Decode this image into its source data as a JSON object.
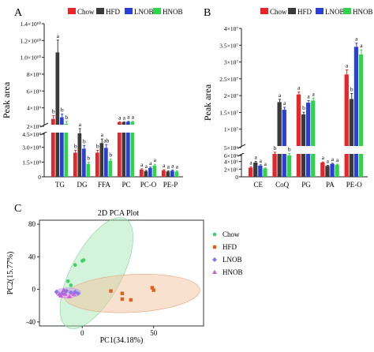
{
  "figure": {
    "palette": {
      "chow": "#e8252b",
      "hfd": "#3a3a3a",
      "lnob": "#2a3fd6",
      "hnob": "#2fd44a"
    },
    "series": [
      "Chow",
      "HFD",
      "LNOB",
      "HNOB"
    ]
  },
  "chart_data": [
    {
      "panel": "A",
      "type": "bar",
      "title": "",
      "ylabel": "Peak area",
      "categories": [
        "TG",
        "DG",
        "FFA",
        "PC",
        "PC-O",
        "PE-P"
      ],
      "axis_break": {
        "lower_ylim": [
          0,
          550000000
        ],
        "upper_ylim": [
          1700000000,
          14000000000
        ]
      },
      "lower_ticks": [
        "0",
        "1.5×10⁸",
        "3.0×10⁸",
        "4.5×10⁸"
      ],
      "upper_ticks": [
        "2×10⁹",
        "4×10⁹",
        "6×10⁹",
        "8×10⁹",
        "1.0×10¹⁰",
        "1.2×10¹⁰",
        "1.4×10¹⁰"
      ],
      "series": [
        {
          "name": "Chow",
          "values": [
            2400000000,
            300000000,
            300000000,
            2000000000,
            90000000,
            80000000
          ]
        },
        {
          "name": "HFD",
          "values": [
            10500000000,
            540000000,
            420000000,
            2000000000,
            70000000,
            65000000
          ]
        },
        {
          "name": "LNOB",
          "values": [
            2600000000,
            350000000,
            360000000,
            2050000000,
            110000000,
            75000000
          ]
        },
        {
          "name": "HNOB",
          "values": [
            1800000000,
            160000000,
            200000000,
            2050000000,
            140000000,
            65000000
          ]
        }
      ],
      "errors": [
        [
          400000000,
          30000000,
          30000000,
          60000000,
          10000000,
          8000000
        ],
        [
          1500000000,
          60000000,
          50000000,
          60000000,
          10000000,
          8000000
        ],
        [
          400000000,
          40000000,
          40000000,
          60000000,
          10000000,
          8000000
        ],
        [
          300000000,
          20000000,
          20000000,
          60000000,
          15000000,
          8000000
        ]
      ],
      "sig_labels": [
        [
          "b",
          "b",
          "b",
          "a",
          "a",
          "a"
        ],
        [
          "a",
          "a",
          "a",
          "a",
          "a",
          "a"
        ],
        [
          "b",
          "b",
          "ab",
          "a",
          "a",
          "a"
        ],
        [
          "b",
          "b",
          "b",
          "a",
          "a",
          "a"
        ]
      ]
    },
    {
      "panel": "B",
      "type": "bar",
      "title": "",
      "ylabel": "Peak area",
      "categories": [
        "CE",
        "CoQ",
        "PG",
        "PA",
        "PE-O"
      ],
      "axis_break": {
        "lower_ylim": [
          0,
          8000000
        ],
        "upper_ylim": [
          1700000,
          40000000
        ]
      },
      "lower_ticks": [
        "0",
        "2×10⁶",
        "4×10⁶",
        "6×10⁶"
      ],
      "upper_ticks": [
        "5×10⁶",
        "1×10⁷",
        "1.5×10⁷",
        "2×10⁷",
        "2.5×10⁷",
        "3×10⁷",
        "3.5×10⁷",
        "4×10⁷"
      ],
      "series": [
        {
          "name": "Chow",
          "values": [
            3200000,
            8000000,
            18500000,
            5000000,
            25000000
          ]
        },
        {
          "name": "HFD",
          "values": [
            5000000,
            16000000,
            12000000,
            3800000,
            17000000
          ]
        },
        {
          "name": "LNOB",
          "values": [
            3900000,
            13500000,
            15800000,
            4500000,
            34000000
          ]
        },
        {
          "name": "HNOB",
          "values": [
            2900000,
            7500000,
            16500000,
            4200000,
            31500000
          ]
        }
      ],
      "errors": [
        [
          300000,
          600000,
          800000,
          200000,
          1500000
        ],
        [
          400000,
          900000,
          700000,
          200000,
          1800000
        ],
        [
          300000,
          800000,
          700000,
          200000,
          1200000
        ],
        [
          200000,
          600000,
          800000,
          200000,
          1500000
        ]
      ],
      "sig_labels": [
        [
          "a",
          "b",
          "a",
          "a",
          "a"
        ],
        [
          "a",
          "a",
          "b",
          "a",
          "b"
        ],
        [
          "a",
          "a",
          "a",
          "a",
          "a"
        ],
        [
          "a",
          "b",
          "a",
          "a",
          "a"
        ]
      ]
    },
    {
      "panel": "C",
      "type": "scatter",
      "title": "2D PCA Plot",
      "xlabel": "PC1(34.18%)",
      "ylabel": "PC2(15.77%)",
      "xlim": [
        -30,
        85
      ],
      "ylim": [
        -45,
        85
      ],
      "xticks": [
        0,
        50
      ],
      "yticks": [
        -40,
        0,
        40,
        80
      ],
      "series": [
        {
          "name": "Chow",
          "marker": "circle",
          "points": [
            [
              -10,
              10
            ],
            [
              -5,
              30
            ],
            [
              0,
              35
            ],
            [
              1,
              36
            ],
            [
              -8,
              5
            ],
            [
              -12,
              -2
            ]
          ]
        },
        {
          "name": "HFD",
          "marker": "square",
          "points": [
            [
              20,
              -2
            ],
            [
              28,
              -5
            ],
            [
              28,
              -12
            ],
            [
              34,
              -13
            ],
            [
              49,
              2
            ],
            [
              50,
              -1
            ]
          ]
        },
        {
          "name": "LNOB",
          "marker": "diamond",
          "points": [
            [
              -18,
              -3
            ],
            [
              -14,
              -5
            ],
            [
              -11,
              -2
            ],
            [
              -8,
              -4
            ],
            [
              -5,
              -3
            ],
            [
              -3,
              -5
            ]
          ]
        },
        {
          "name": "HNOB",
          "marker": "triangle",
          "points": [
            [
              -16,
              -6
            ],
            [
              -12,
              -6
            ],
            [
              -9,
              -9
            ],
            [
              -6,
              -6
            ],
            [
              -13,
              -1
            ],
            [
              -15,
              -8
            ]
          ]
        }
      ],
      "ellipses": [
        {
          "name": "Chow",
          "color": "#9ee6b0"
        },
        {
          "name": "HFD",
          "color": "#f2c3a0"
        },
        {
          "name": "LNOB",
          "color": "#c7b7f0"
        },
        {
          "name": "HNOB",
          "color": "#e9b3ef"
        }
      ],
      "legend_placement": "right"
    }
  ]
}
